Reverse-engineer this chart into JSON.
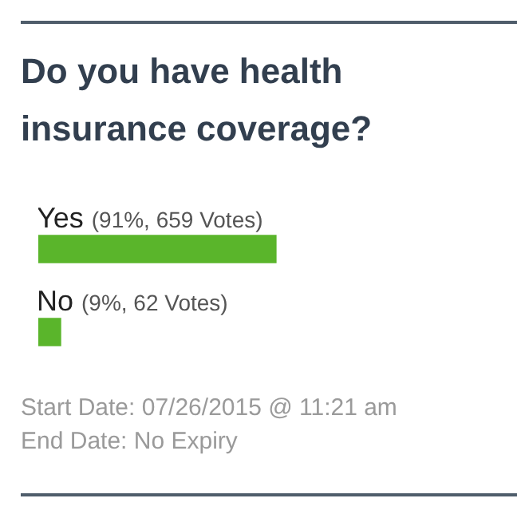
{
  "chart_data": {
    "type": "bar",
    "orientation": "horizontal",
    "title": "Do you have health insurance coverage?",
    "categories": [
      "Yes",
      "No"
    ],
    "values": [
      659,
      62
    ],
    "value_labels": [
      "(91%, 659 Votes)",
      "(9%, 62 Votes)"
    ],
    "color": "#5ab52b",
    "annotations": [
      "Start Date: 07/26/2015 @ 11:21 am",
      "End Date: No Expiry"
    ]
  }
}
